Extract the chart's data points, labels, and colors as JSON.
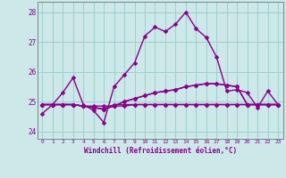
{
  "xlabel": "Windchill (Refroidissement éolien,°C)",
  "background_color": "#cce8e8",
  "grid_color": "#99cccc",
  "line_color": "#880088",
  "xlim": [
    -0.5,
    23.5
  ],
  "ylim": [
    23.75,
    28.35
  ],
  "yticks": [
    24,
    25,
    26,
    27,
    28
  ],
  "xticks": [
    0,
    1,
    2,
    3,
    4,
    5,
    6,
    7,
    8,
    9,
    10,
    11,
    12,
    13,
    14,
    15,
    16,
    17,
    18,
    19,
    20,
    21,
    22,
    23
  ],
  "series": [
    [
      24.6,
      24.9,
      25.3,
      25.8,
      24.9,
      24.7,
      24.3,
      25.5,
      25.9,
      26.3,
      27.2,
      27.5,
      27.35,
      27.6,
      28.0,
      27.45,
      27.15,
      26.5,
      25.35,
      25.4,
      25.3,
      24.8,
      25.35,
      24.9
    ],
    [
      24.9,
      24.9,
      24.9,
      24.9,
      24.85,
      24.85,
      24.85,
      24.85,
      24.85,
      24.9,
      24.9,
      24.9,
      24.9,
      24.9,
      24.9,
      24.9,
      24.9,
      24.9,
      24.9,
      24.9,
      24.9,
      24.9,
      24.9,
      24.9
    ],
    [
      24.9,
      24.9,
      24.9,
      24.9,
      24.85,
      24.8,
      24.75,
      24.9,
      24.9,
      24.9,
      24.9,
      24.9,
      24.9,
      24.9,
      24.9,
      24.9,
      24.9,
      24.9,
      24.9,
      24.9,
      24.9,
      24.9,
      24.9,
      24.9
    ],
    [
      24.9,
      24.9,
      24.9,
      24.9,
      24.85,
      24.8,
      24.75,
      24.85,
      25.0,
      25.1,
      25.2,
      25.3,
      25.35,
      25.4,
      25.5,
      25.55,
      25.6,
      25.6,
      25.55,
      25.5,
      24.9,
      24.9,
      24.9,
      24.9
    ],
    [
      24.9,
      24.9,
      24.9,
      24.9,
      24.85,
      24.8,
      24.75,
      24.85,
      25.0,
      25.1,
      25.2,
      25.3,
      25.35,
      25.4,
      25.5,
      25.55,
      25.6,
      25.6,
      25.55,
      25.5,
      24.9,
      24.9,
      24.9,
      24.9
    ]
  ],
  "marker": "D",
  "markersize": 2.5,
  "linewidth": 1.0
}
